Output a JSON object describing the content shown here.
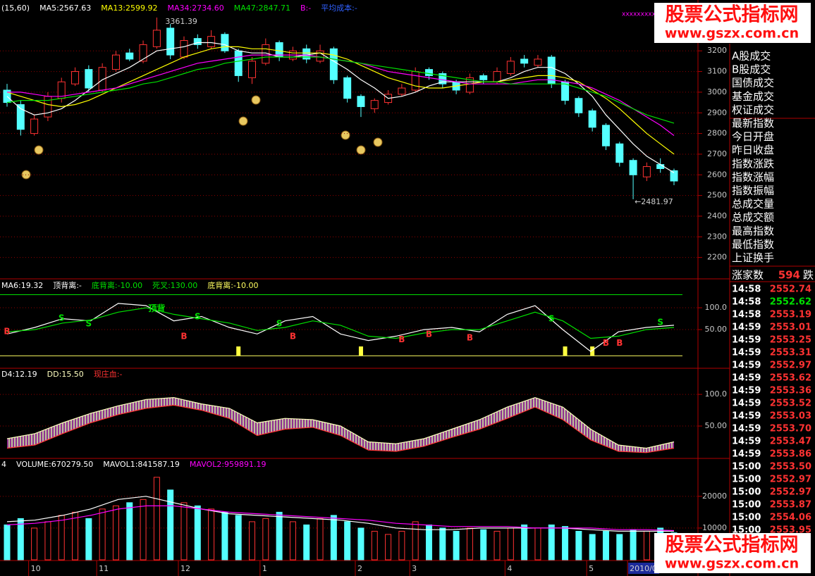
{
  "chart_data": [
    {
      "type": "candlestick",
      "title": "(15,60)",
      "categories": [
        null,
        null,
        "10",
        null,
        null,
        null,
        null,
        "11",
        null,
        null,
        null,
        null,
        null,
        "12",
        null,
        null,
        null,
        null,
        null,
        "1",
        null,
        null,
        null,
        null,
        null,
        null,
        "2",
        null,
        null,
        null,
        "3",
        null,
        null,
        null,
        null,
        null,
        null,
        "4",
        null,
        null,
        null,
        null,
        null,
        "5",
        null,
        null,
        "2010/0",
        null,
        null,
        null
      ],
      "open": [
        3010,
        2940,
        2800,
        2880,
        2970,
        3040,
        3110,
        3010,
        3110,
        3190,
        3150,
        3220,
        3310,
        3170,
        3260,
        3220,
        3280,
        3200,
        3070,
        3140,
        3240,
        3160,
        3210,
        3150,
        3210,
        3070,
        2980,
        2920,
        2950,
        2990,
        3010,
        3110,
        3090,
        3050,
        3000,
        3080,
        3050,
        3090,
        3160,
        3130,
        3170,
        3050,
        2970,
        2910,
        2840,
        2750,
        2670,
        2590,
        2650,
        2620
      ],
      "high": [
        3040,
        2960,
        2890,
        3000,
        3070,
        3120,
        3130,
        3140,
        3200,
        3210,
        3250,
        3361.39,
        3330,
        3270,
        3280,
        3300,
        3290,
        3210,
        3170,
        3260,
        3250,
        3220,
        3230,
        3230,
        3220,
        3080,
        2990,
        2970,
        3010,
        3040,
        3120,
        3120,
        3100,
        3060,
        3090,
        3090,
        3120,
        3170,
        3180,
        3180,
        3180,
        3060,
        2980,
        2920,
        2850,
        2760,
        2680,
        2660,
        2680,
        2630
      ],
      "low": [
        2930,
        2790,
        2790,
        2860,
        2950,
        3030,
        3000,
        3000,
        3100,
        3150,
        3140,
        3210,
        3160,
        3160,
        3210,
        3210,
        3190,
        3050,
        3040,
        3130,
        3150,
        3150,
        3140,
        3140,
        3040,
        2950,
        2880,
        2900,
        2940,
        2980,
        3000,
        3060,
        3020,
        2990,
        2990,
        3040,
        3040,
        3080,
        3120,
        3120,
        3020,
        2940,
        2880,
        2810,
        2720,
        2640,
        2481.97,
        2570,
        2610,
        2550
      ],
      "close": [
        2950,
        2820,
        2870,
        2980,
        3050,
        3100,
        3020,
        3120,
        3180,
        3160,
        3230,
        3300,
        3180,
        3250,
        3230,
        3270,
        3200,
        3080,
        3150,
        3230,
        3170,
        3200,
        3160,
        3200,
        3060,
        2970,
        2930,
        2960,
        2990,
        3020,
        3100,
        3080,
        3040,
        3010,
        3070,
        3060,
        3100,
        3150,
        3140,
        3160,
        3040,
        2960,
        2900,
        2830,
        2740,
        2660,
        2600,
        2640,
        2630,
        2570
      ],
      "up_color": "#ff3232",
      "down_color": "#54ffff",
      "series": [
        {
          "name": "MA5:2567.63",
          "color": "#ffffff",
          "values": [
            2980,
            2920,
            2890,
            2900,
            2920,
            2960,
            3010,
            3060,
            3090,
            3120,
            3160,
            3200,
            3210,
            3220,
            3240,
            3240,
            3230,
            3200,
            3190,
            3190,
            3170,
            3170,
            3180,
            3190,
            3150,
            3110,
            3060,
            3020,
            2970,
            2980,
            3000,
            3030,
            3050,
            3050,
            3050,
            3050,
            3050,
            3070,
            3100,
            3120,
            3120,
            3090,
            3040,
            2980,
            2890,
            2820,
            2750,
            2690,
            2650,
            2610
          ]
        },
        {
          "name": "MA13:2599.92",
          "color": "#ffff00",
          "values": [
            3000,
            2980,
            2960,
            2940,
            2930,
            2940,
            2960,
            2990,
            3020,
            3050,
            3080,
            3110,
            3140,
            3170,
            3190,
            3210,
            3220,
            3220,
            3210,
            3210,
            3200,
            3190,
            3190,
            3190,
            3180,
            3160,
            3130,
            3100,
            3070,
            3050,
            3030,
            3020,
            3020,
            3030,
            3040,
            3050,
            3050,
            3060,
            3070,
            3080,
            3080,
            3070,
            3050,
            3010,
            2970,
            2920,
            2860,
            2800,
            2750,
            2700
          ]
        },
        {
          "name": "MA34:2734.60",
          "color": "#ff00ff",
          "values": [
            3000,
            3000,
            2990,
            2980,
            2980,
            2990,
            3000,
            3010,
            3020,
            3040,
            3060,
            3080,
            3100,
            3120,
            3140,
            3150,
            3160,
            3170,
            3180,
            3180,
            3180,
            3180,
            3180,
            3170,
            3160,
            3150,
            3140,
            3120,
            3100,
            3090,
            3080,
            3070,
            3060,
            3050,
            3040,
            3040,
            3040,
            3040,
            3050,
            3060,
            3060,
            3050,
            3040,
            3020,
            2990,
            2960,
            2920,
            2880,
            2840,
            2790
          ]
        },
        {
          "name": "MA47:2847.71",
          "color": "#00e000",
          "values": [
            2950,
            2960,
            2960,
            2960,
            2970,
            2980,
            2990,
            3000,
            3010,
            3020,
            3040,
            3050,
            3070,
            3090,
            3110,
            3120,
            3140,
            3150,
            3160,
            3170,
            3170,
            3170,
            3170,
            3170,
            3160,
            3150,
            3140,
            3130,
            3120,
            3110,
            3100,
            3090,
            3080,
            3070,
            3060,
            3050,
            3050,
            3040,
            3040,
            3040,
            3040,
            3040,
            3020,
            3000,
            2980,
            2950,
            2920,
            2890,
            2870,
            2850
          ]
        }
      ],
      "labels": [
        {
          "text": "B:-",
          "color": "#ff00ff"
        },
        {
          "text": "平均成本:-",
          "color": "#3060ff"
        }
      ],
      "high_label": "3361.39",
      "low_label": "←2481.97",
      "ylim": [
        2100,
        3395
      ],
      "yticks": [
        2200,
        2300,
        2400,
        2500,
        2600,
        2700,
        2800,
        2900,
        3000,
        3100,
        3200
      ],
      "grid": true
    },
    {
      "type": "line",
      "title": "MA6:19.32",
      "series": [
        {
          "name": "顶背离:-",
          "color": "#ffffff",
          "values": [
            40,
            55,
            75,
            70,
            110,
            105,
            70,
            80,
            55,
            40,
            70,
            80,
            40,
            25,
            35,
            50,
            55,
            45,
            85,
            105,
            50,
            0,
            45,
            55,
            60
          ]
        },
        {
          "name": "底背离:-10.00",
          "color": "#00e000",
          "values": [
            45,
            50,
            65,
            72,
            90,
            100,
            85,
            75,
            65,
            48,
            55,
            70,
            60,
            35,
            30,
            42,
            50,
            50,
            70,
            90,
            70,
            30,
            35,
            50,
            55
          ]
        }
      ],
      "lines": [
        {
          "label": "死叉:130.00",
          "value": 130,
          "color": "#00e000"
        },
        {
          "label": "底背离:-10.00",
          "value": -10,
          "color": "#ffff60"
        }
      ],
      "markers": [
        {
          "label": "S",
          "index": 4,
          "value": 76
        },
        {
          "label": "S",
          "index": 6,
          "value": 63
        },
        {
          "label": "S",
          "index": 14,
          "value": 79
        },
        {
          "label": "S",
          "index": 20,
          "value": 63
        },
        {
          "label": "S",
          "index": 40,
          "value": 74
        },
        {
          "label": "S",
          "index": 48,
          "value": 66
        },
        {
          "label": "顶背",
          "index": 11,
          "value": 98
        },
        {
          "label": "B",
          "index": 0,
          "value": 45
        },
        {
          "label": "B",
          "index": 13,
          "value": 34
        },
        {
          "label": "B",
          "index": 21,
          "value": 34
        },
        {
          "label": "B",
          "index": 29,
          "value": 27
        },
        {
          "label": "B",
          "index": 31,
          "value": 39
        },
        {
          "label": "B",
          "index": 34,
          "value": 31
        },
        {
          "label": "B",
          "index": 44,
          "value": 19
        },
        {
          "label": "B",
          "index": 45,
          "value": 19
        }
      ],
      "marker_colors": {
        "S": "#00e000",
        "B": "#ff3232",
        "顶背": "#00e000"
      },
      "yellow_bars": [
        17,
        26,
        41,
        43
      ],
      "ylim": [
        -37,
        163
      ],
      "yticks": [
        {
          "value": 50,
          "label": "50.00"
        },
        {
          "value": 100,
          "label": "100.0"
        }
      ],
      "grid": true
    },
    {
      "type": "band",
      "title": "D4:12.19",
      "series": [
        {
          "name": "DD:15.50",
          "color": "#ffffc0",
          "values": [
            30,
            38,
            55,
            70,
            82,
            92,
            95,
            85,
            78,
            55,
            62,
            60,
            50,
            25,
            22,
            30,
            45,
            60,
            80,
            95,
            80,
            45,
            20,
            15,
            25
          ]
        },
        {
          "name": "现庄血:-",
          "color": "#ff3232",
          "values": [
            15,
            20,
            38,
            55,
            68,
            78,
            83,
            75,
            62,
            35,
            45,
            48,
            35,
            12,
            10,
            18,
            32,
            45,
            62,
            80,
            60,
            28,
            10,
            8,
            15
          ]
        }
      ],
      "ylim": [
        0,
        139
      ],
      "yticks": [
        {
          "value": 50,
          "label": "50.00"
        },
        {
          "value": 100,
          "label": "100.0"
        }
      ],
      "grid": true
    },
    {
      "type": "volume",
      "title": "4",
      "bar_name": "VOLUME:670279.50",
      "values": [
        11000,
        13000,
        10000,
        12000,
        14000,
        15000,
        13000,
        16000,
        17000,
        18000,
        19000,
        26000,
        22000,
        18000,
        17000,
        16000,
        15000,
        14000,
        12000,
        13000,
        15000,
        12000,
        11000,
        13000,
        14000,
        12000,
        10000,
        9000,
        8000,
        9000,
        12000,
        11000,
        10000,
        9000,
        10000,
        9500,
        9000,
        10000,
        11000,
        10000,
        11000,
        10500,
        9000,
        8000,
        9000,
        8000,
        9500,
        9000,
        10000,
        8500
      ],
      "series": [
        {
          "name": "MAVOL1:841587.19",
          "color": "#ffffff",
          "values": [
            12000,
            12500,
            14000,
            16000,
            19000,
            20000,
            18000,
            16000,
            14500,
            14000,
            13500,
            13000,
            12500,
            11500,
            10000,
            9500,
            9500,
            10000,
            10000,
            10000,
            10000,
            9500,
            9000,
            9000,
            9000
          ]
        },
        {
          "name": "MAVOL2:959891.19",
          "color": "#ff00ff",
          "values": [
            11000,
            11500,
            12500,
            14000,
            16000,
            17000,
            17000,
            16000,
            15000,
            14500,
            14000,
            13500,
            13000,
            12500,
            11500,
            11000,
            10500,
            10500,
            10500,
            10000,
            10000,
            10000,
            9500,
            9500,
            9200
          ]
        }
      ],
      "ylim": [
        0,
        31500
      ],
      "yticks": [
        10000,
        20000
      ],
      "grid": true
    }
  ],
  "corner_marks": "xxxxxxxxx",
  "side_panel": {
    "items": [
      "A股成交",
      "B股成交",
      "国债成交",
      "基金成交",
      "权证成交",
      "最新指数",
      "今日开盘",
      "昨日收盘",
      "指数涨跌",
      "指数涨幅",
      "指数振幅",
      "总成交量",
      "总成交额",
      "最高指数",
      "最低指数",
      "上证换手"
    ],
    "advance_label": "涨家数",
    "advance_value": 594,
    "decline_label": "跌",
    "ticks": [
      {
        "time": "14:58",
        "price": "2552.74",
        "color": "#ff3232"
      },
      {
        "time": "14:58",
        "price": "2552.62",
        "color": "#00e000"
      },
      {
        "time": "14:58",
        "price": "2553.19",
        "color": "#ff3232"
      },
      {
        "time": "14:59",
        "price": "2553.01",
        "color": "#ff3232"
      },
      {
        "time": "14:59",
        "price": "2553.25",
        "color": "#ff3232"
      },
      {
        "time": "14:59",
        "price": "2553.31",
        "color": "#ff3232"
      },
      {
        "time": "14:59",
        "price": "2552.97",
        "color": "#ff3232"
      },
      {
        "time": "14:59",
        "price": "2553.62",
        "color": "#ff3232"
      },
      {
        "time": "14:59",
        "price": "2553.36",
        "color": "#ff3232"
      },
      {
        "time": "14:59",
        "price": "2553.52",
        "color": "#ff3232"
      },
      {
        "time": "14:59",
        "price": "2553.03",
        "color": "#ff3232"
      },
      {
        "time": "14:59",
        "price": "2553.70",
        "color": "#ff3232"
      },
      {
        "time": "14:59",
        "price": "2553.47",
        "color": "#ff3232"
      },
      {
        "time": "14:59",
        "price": "2553.86",
        "color": "#ff3232"
      },
      {
        "time": "15:00",
        "price": "2553.50",
        "color": "#ff3232"
      },
      {
        "time": "15:00",
        "price": "2552.97",
        "color": "#ff3232"
      },
      {
        "time": "15:00",
        "price": "2552.97",
        "color": "#ff3232"
      },
      {
        "time": "15:00",
        "price": "2553.87",
        "color": "#ff3232"
      },
      {
        "time": "15:00",
        "price": "2554.06",
        "color": "#ff3232"
      },
      {
        "time": "15:00",
        "price": "2553.95",
        "color": "#ff3232"
      }
    ]
  },
  "watermark": {
    "title": "股票公式指标网",
    "url": "www.gszx.com.cn"
  }
}
